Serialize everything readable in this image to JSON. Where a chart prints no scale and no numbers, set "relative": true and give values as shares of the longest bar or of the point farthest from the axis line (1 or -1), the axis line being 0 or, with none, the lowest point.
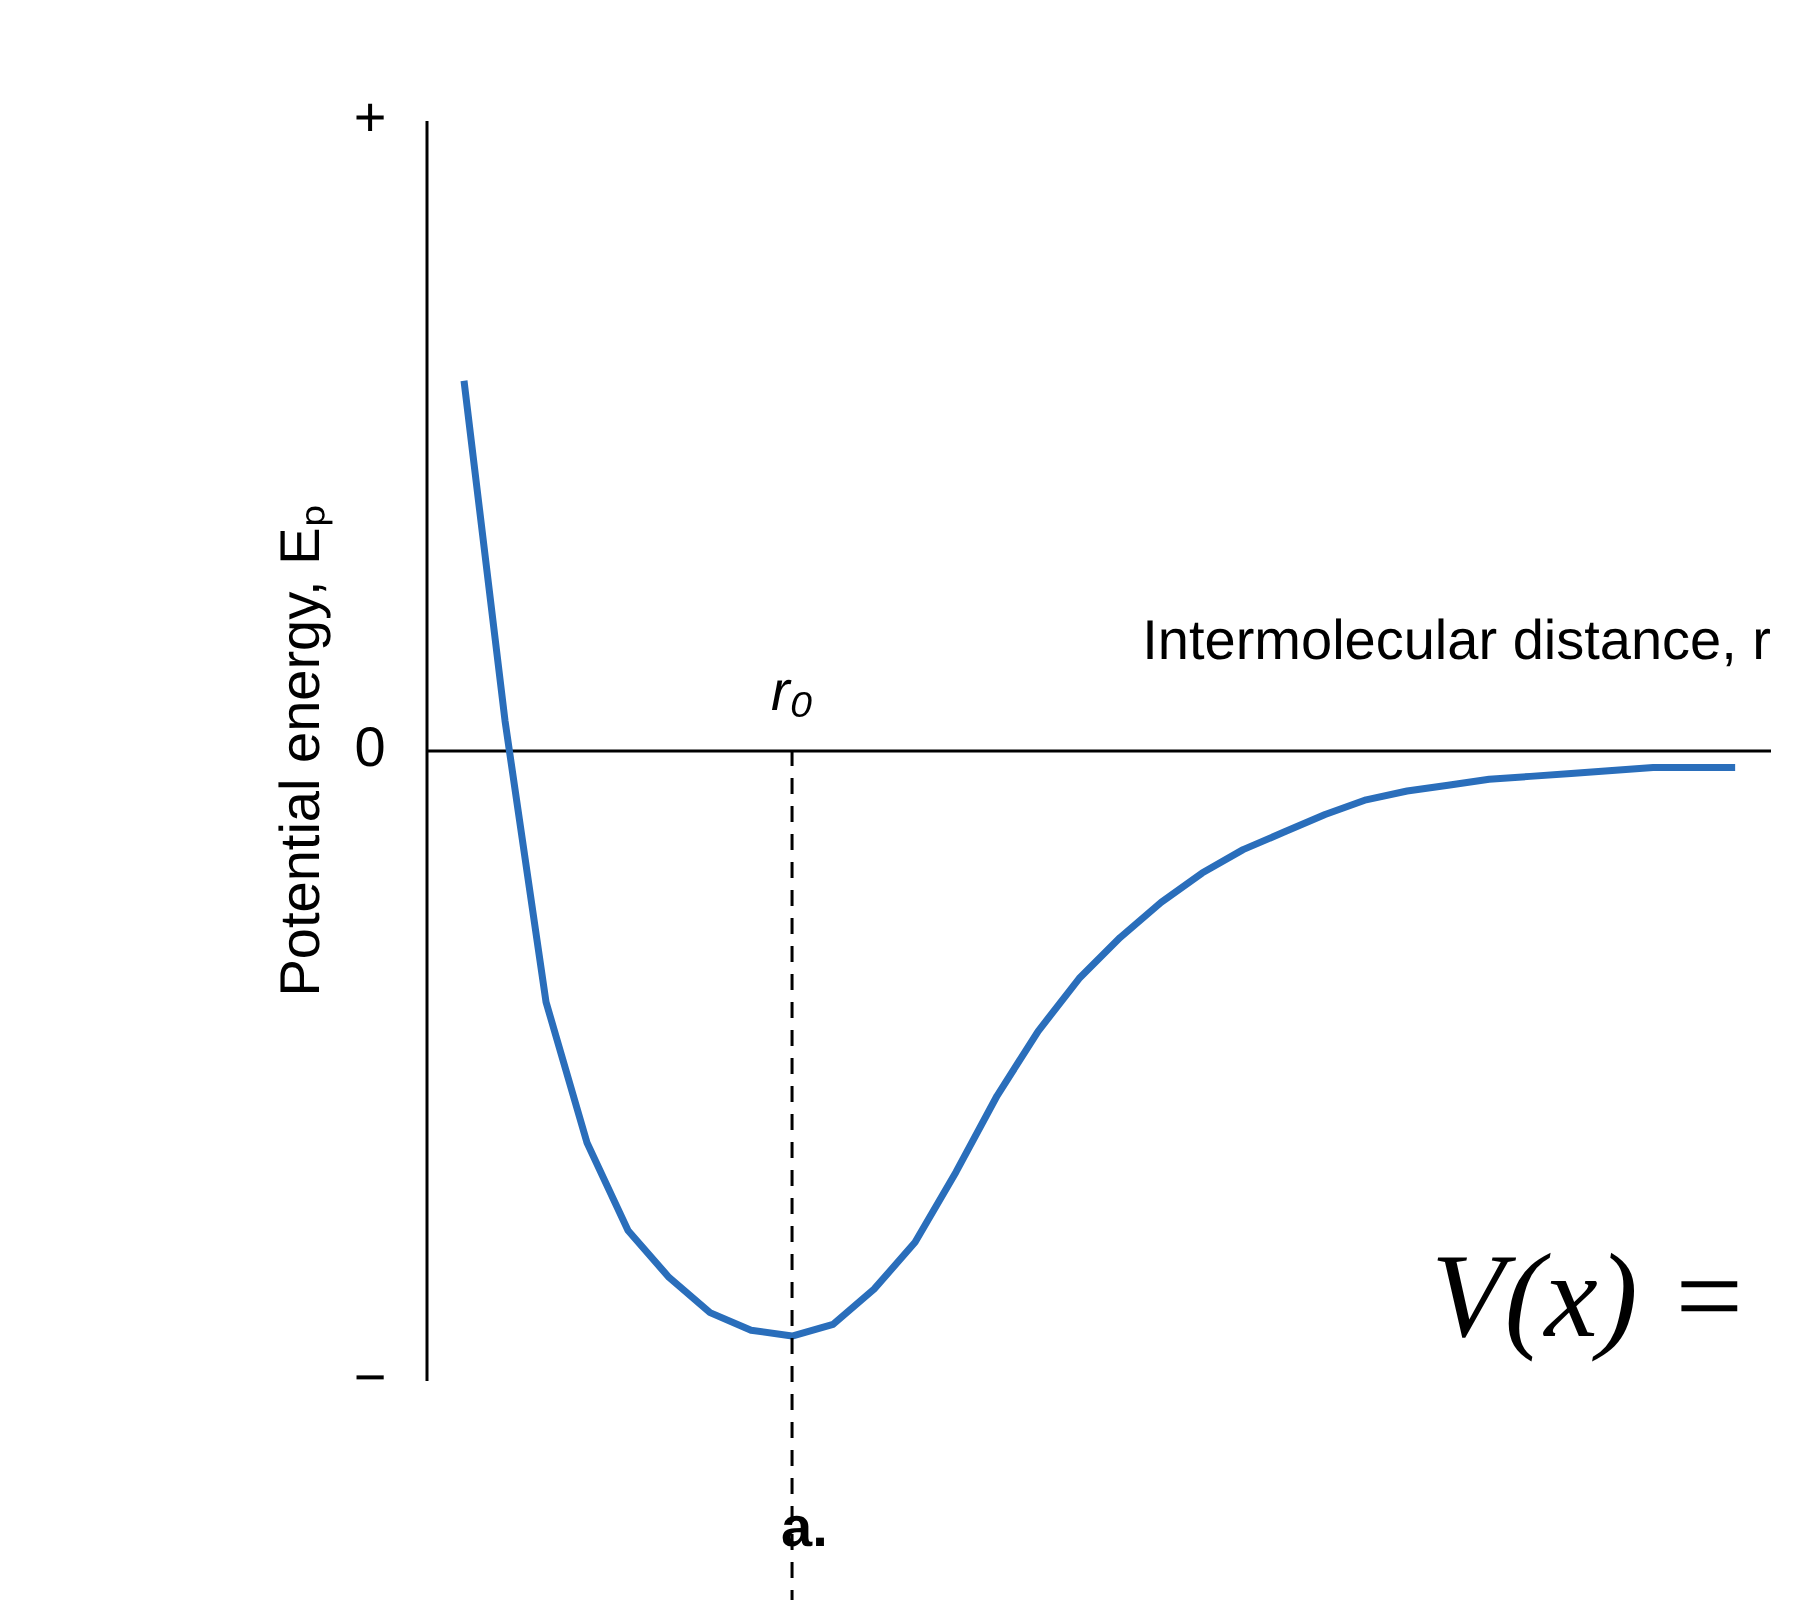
{
  "chart_data": {
    "type": "line",
    "relative": true,
    "categories": [
      null,
      null,
      null,
      null,
      null,
      null,
      null,
      null,
      null,
      null,
      null,
      null,
      null,
      null,
      null,
      null,
      null,
      null,
      null,
      null,
      null,
      null,
      null,
      null,
      null,
      null,
      null,
      null,
      null,
      null,
      null,
      null
    ],
    "series": [
      {
        "color": "#2a6ebb",
        "values": [
          0.63,
          0.05,
          -0.43,
          -0.67,
          -0.82,
          -0.9,
          -0.96,
          -0.99,
          -1,
          -0.98,
          -0.92,
          -0.84,
          -0.72,
          -0.59,
          -0.48,
          -0.39,
          -0.32,
          -0.26,
          -0.21,
          -0.17,
          -0.14,
          -0.11,
          -0.085,
          -0.07,
          -0.06,
          -0.05,
          -0.045,
          -0.04,
          -0.035,
          -0.03,
          -0.03,
          -0.03
        ]
      }
    ],
    "xlabel": "Intermolecular distance, r",
    "ylabel": "Potential energy, Eₚ",
    "annotations": [
      "+",
      "0",
      "−",
      "a.",
      "V(x) =",
      "r₀"
    ],
    "marker": "none",
    "line_style": "solid"
  }
}
